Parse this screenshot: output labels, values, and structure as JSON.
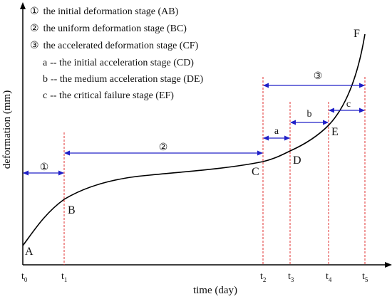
{
  "legend": [
    {
      "marker": "①",
      "text": "the initial deformation stage (AB)"
    },
    {
      "marker": "②",
      "text": "the uniform deformation stage (BC)"
    },
    {
      "marker": "③",
      "text": "the accelerated deformation stage (CF)"
    },
    {
      "marker": "a",
      "text": "-- the initial acceleration stage (CD)"
    },
    {
      "marker": "b",
      "text": "-- the medium acceleration stage (DE)"
    },
    {
      "marker": "c",
      "text": "-- the critical failure stage (EF)"
    }
  ],
  "axes": {
    "xlabel": "time (day)",
    "ylabel": "deformation (mm)"
  },
  "ticks": [
    {
      "main": "t",
      "sub": "0"
    },
    {
      "main": "t",
      "sub": "1"
    },
    {
      "main": "t",
      "sub": "2"
    },
    {
      "main": "t",
      "sub": "3"
    },
    {
      "main": "t",
      "sub": "4"
    },
    {
      "main": "t",
      "sub": "5"
    }
  ],
  "points": {
    "A": "A",
    "B": "B",
    "C": "C",
    "D": "D",
    "E": "E",
    "F": "F"
  },
  "segments": {
    "s1": "①",
    "s2": "②",
    "s3": "③",
    "a": "a",
    "b": "b",
    "c": "c"
  },
  "colors": {
    "axis": "#000000",
    "curve": "#000000",
    "guide": "#e03030",
    "arrow": "#2020c8"
  }
}
